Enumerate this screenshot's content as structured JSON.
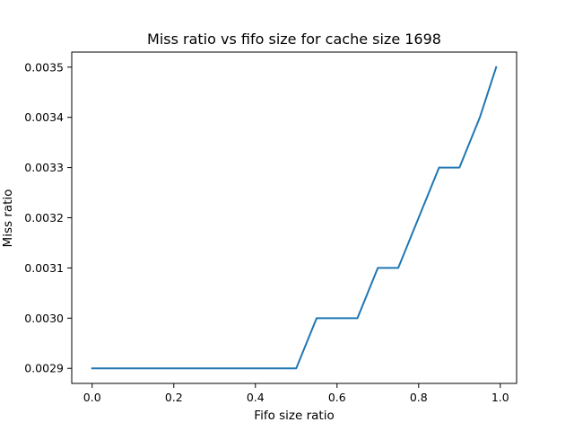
{
  "chart_data": {
    "type": "line",
    "title": "Miss ratio vs fifo size for cache size 1698",
    "xlabel": "Fifo size ratio",
    "ylabel": "Miss ratio",
    "xlim": [
      -0.05,
      1.04
    ],
    "ylim": [
      0.00287,
      0.00353
    ],
    "xticks": [
      0.0,
      0.2,
      0.4,
      0.6,
      0.8,
      1.0
    ],
    "xtick_labels": [
      "0.0",
      "0.2",
      "0.4",
      "0.6",
      "0.8",
      "1.0"
    ],
    "yticks": [
      0.0029,
      0.003,
      0.0031,
      0.0032,
      0.0033,
      0.0034,
      0.0035
    ],
    "ytick_labels": [
      "0.0029",
      "0.0030",
      "0.0031",
      "0.0032",
      "0.0033",
      "0.0034",
      "0.0035"
    ],
    "grid": false,
    "legend": "none",
    "series": [
      {
        "color": "#1f77b4",
        "x": [
          0.0,
          0.05,
          0.1,
          0.15,
          0.2,
          0.25,
          0.3,
          0.35,
          0.4,
          0.45,
          0.5,
          0.55,
          0.6,
          0.65,
          0.7,
          0.75,
          0.8,
          0.85,
          0.9,
          0.95,
          0.99
        ],
        "y": [
          0.0029,
          0.0029,
          0.0029,
          0.0029,
          0.0029,
          0.0029,
          0.0029,
          0.0029,
          0.0029,
          0.0029,
          0.0029,
          0.003,
          0.003,
          0.003,
          0.0031,
          0.0031,
          0.0032,
          0.0033,
          0.0033,
          0.0034,
          0.0035
        ]
      }
    ]
  }
}
